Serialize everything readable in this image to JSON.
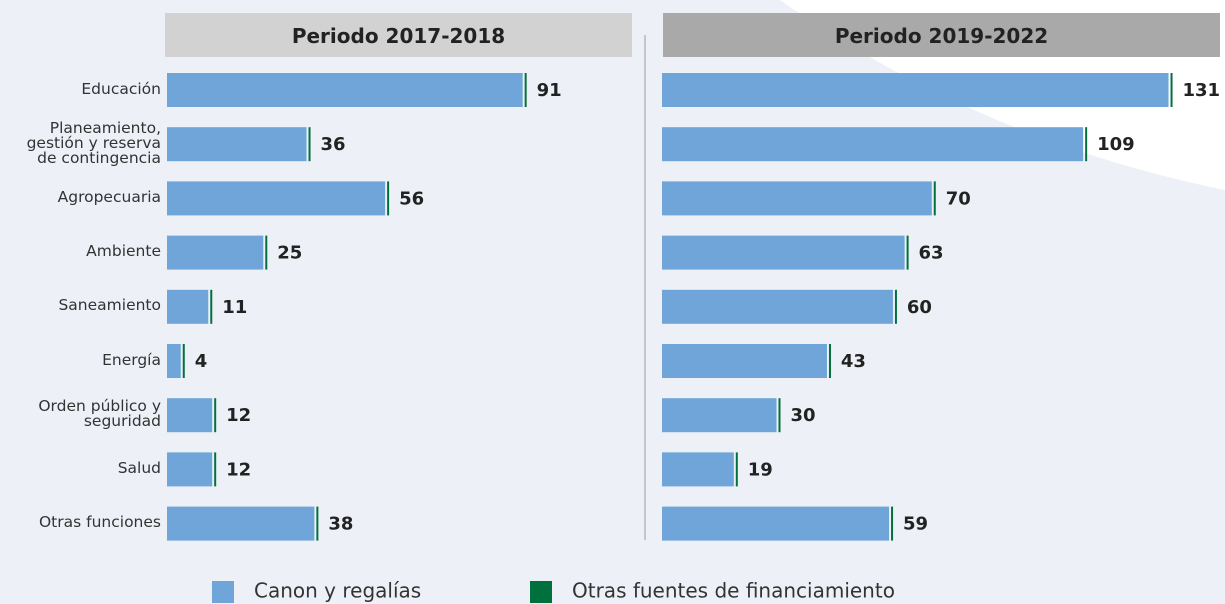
{
  "chart_data": {
    "type": "bar",
    "orientation": "horizontal",
    "stacked": true,
    "categories": [
      "Educación",
      "Planeamiento,\ngestión y reserva\nde contingencia",
      "Agropecuaria",
      "Ambiente",
      "Saneamiento",
      "Energía",
      "Orden público y\nseguridad",
      "Salud",
      "Otras funciones"
    ],
    "legend": [
      {
        "name": "Canon y regalías",
        "color": "#6fa5d8"
      },
      {
        "name": "Otras fuentes de financiamiento",
        "color": "#00703c"
      }
    ],
    "panels": [
      {
        "title": "Periodo 2017-2018",
        "xlim": [
          0,
          100
        ],
        "series": [
          {
            "values": [
              90.5,
              35.5,
              55.5,
              24.5,
              10.5,
              3.5,
              11.5,
              11.5,
              37.5
            ]
          },
          {
            "values": [
              0.5,
              0.5,
              0.5,
              0.5,
              0.5,
              0.5,
              0.5,
              0.5,
              0.5
            ]
          }
        ],
        "totals": [
          91,
          36,
          56,
          25,
          11,
          4,
          12,
          12,
          38
        ]
      },
      {
        "title": "Periodo 2019-2022",
        "xlim": [
          0,
          135
        ],
        "series": [
          {
            "values": [
              130.5,
              108.5,
              69.5,
              62.5,
              59.5,
              42.5,
              29.5,
              18.5,
              58.5
            ]
          },
          {
            "values": [
              0.5,
              0.5,
              0.5,
              0.5,
              0.5,
              0.5,
              0.5,
              0.5,
              0.5
            ]
          }
        ],
        "totals": [
          131,
          109,
          70,
          63,
          60,
          43,
          30,
          19,
          59
        ]
      }
    ]
  }
}
